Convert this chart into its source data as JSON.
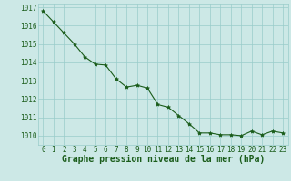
{
  "x": [
    0,
    1,
    2,
    3,
    4,
    5,
    6,
    7,
    8,
    9,
    10,
    11,
    12,
    13,
    14,
    15,
    16,
    17,
    18,
    19,
    20,
    21,
    22,
    23
  ],
  "y": [
    1016.8,
    1016.2,
    1015.6,
    1015.0,
    1014.3,
    1013.9,
    1013.85,
    1013.1,
    1012.65,
    1012.75,
    1012.6,
    1011.7,
    1011.55,
    1011.1,
    1010.65,
    1010.15,
    1010.15,
    1010.05,
    1010.05,
    1010.0,
    1010.25,
    1010.05,
    1010.25,
    1010.15
  ],
  "ylim": [
    1009.5,
    1017.2
  ],
  "xlim": [
    -0.5,
    23.5
  ],
  "yticks": [
    1010,
    1011,
    1012,
    1013,
    1014,
    1015,
    1016,
    1017
  ],
  "xticks": [
    0,
    1,
    2,
    3,
    4,
    5,
    6,
    7,
    8,
    9,
    10,
    11,
    12,
    13,
    14,
    15,
    16,
    17,
    18,
    19,
    20,
    21,
    22,
    23
  ],
  "line_color": "#1a5c1a",
  "marker": "*",
  "marker_color": "#1a5c1a",
  "bg_color": "#cce8e6",
  "grid_color": "#99ccca",
  "xlabel": "Graphe pression niveau de la mer (hPa)",
  "xlabel_color": "#1a5c1a",
  "tick_color": "#1a5c1a",
  "xlabel_fontsize": 7,
  "tick_fontsize": 5.5
}
